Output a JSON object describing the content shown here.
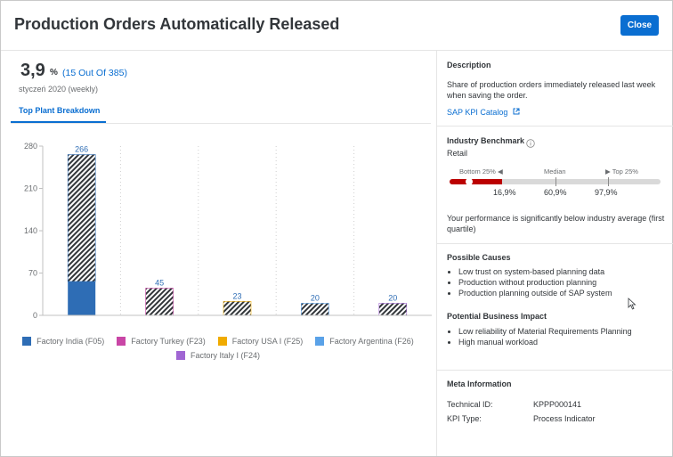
{
  "dialog": {
    "title": "Production Orders Automatically Released",
    "close_label": "Close"
  },
  "kpi": {
    "value": "3,9",
    "unit": "%",
    "count": "(15 Out Of 385)",
    "period": "styczeń 2020 (weekly)"
  },
  "tabs": [
    {
      "label": "Top Plant Breakdown",
      "selected": true
    }
  ],
  "chart_data": {
    "type": "bar",
    "categories": [
      "Factory India (F05)",
      "Factory Turkey (F23)",
      "Factory USA I (F25)",
      "Factory Argentina (F26)",
      "Factory Italy I (F24)"
    ],
    "values": [
      266,
      45,
      23,
      20,
      20
    ],
    "colors": [
      "#2e6db5",
      "#c946a6",
      "#f0ab00",
      "#5aa2e8",
      "#a066d3"
    ],
    "stack_solid": [
      56,
      0,
      0,
      0,
      0
    ],
    "ylim": [
      0,
      280
    ],
    "yticks": [
      "0",
      "70",
      "140",
      "210",
      "280"
    ],
    "legend_position": "bottom",
    "grid": "dotted vertical separators"
  },
  "description": {
    "title": "Description",
    "text": "Share of production orders immediately released last week when saving the order.",
    "link": "SAP KPI Catalog"
  },
  "benchmark": {
    "title": "Industry Benchmark",
    "industry": "Retail",
    "bottom_label": "Bottom 25% ◀",
    "median_label": "Median",
    "top_label": "▶ Top 25%",
    "bottom_value": "16,9%",
    "median_value": "60,9%",
    "top_value": "97,9%",
    "performance_fraction": 0.039,
    "fill_fraction": 0.25,
    "median_fraction": 0.5,
    "top_fraction": 0.75,
    "summary": "Your performance is significantly below industry average (first quartile)"
  },
  "causes": {
    "title": "Possible Causes",
    "items": [
      "Low trust on system-based planning data",
      "Production without production planning",
      "Production planning outside of SAP system"
    ]
  },
  "impact": {
    "title": "Potential Business Impact",
    "items": [
      "Low reliability of Material Requirements Planning",
      "High manual workload"
    ]
  },
  "meta": {
    "title": "Meta Information",
    "technical_id_label": "Technical ID:",
    "technical_id": "KPPP000141",
    "kpi_type_label": "KPI Type:",
    "kpi_type": "Process Indicator"
  },
  "colors": {
    "accent": "#0a6ed1",
    "negative": "#bb0000"
  },
  "icons": {
    "info": "info-icon",
    "external_link": "external-link-icon",
    "cursor": "mouse-cursor-icon"
  }
}
